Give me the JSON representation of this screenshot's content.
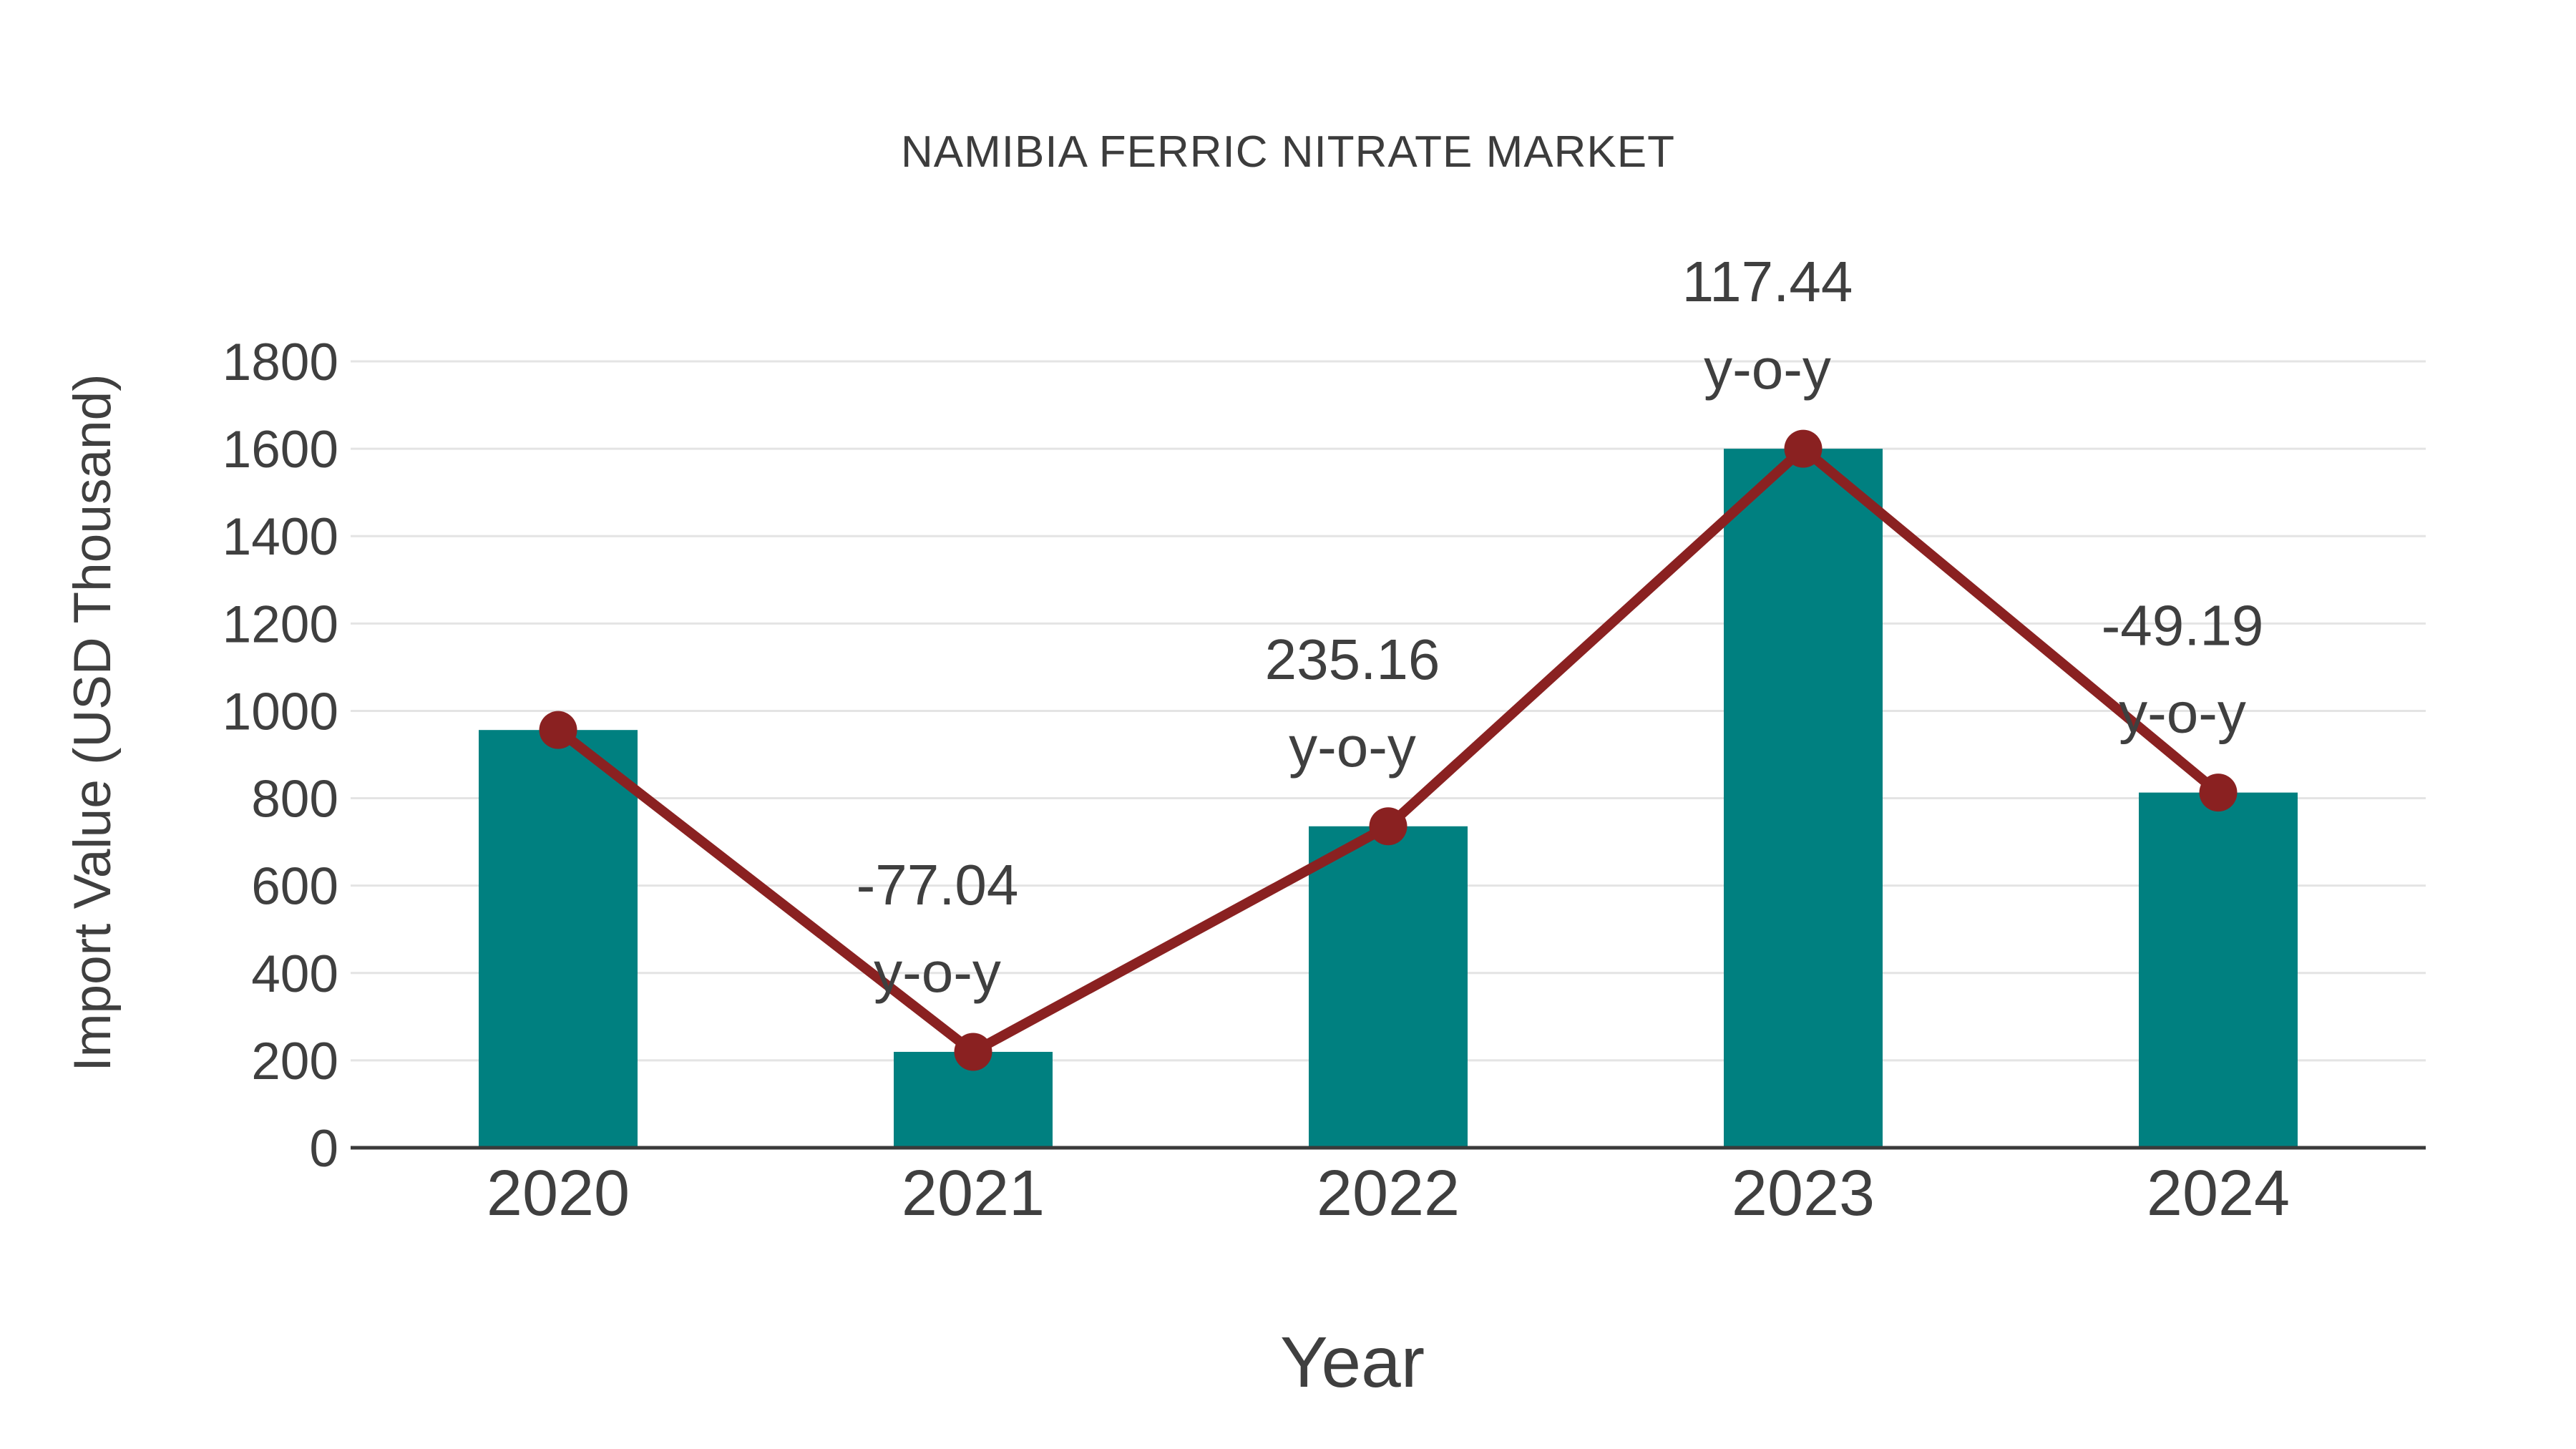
{
  "page": {
    "background": "#ffffff"
  },
  "chart_data": {
    "type": "bar",
    "title": "NAMIBIA FERRIC NITRATE MARKET",
    "xlabel": "Year",
    "ylabel": "Import Value (USD Thousand)",
    "categories": [
      "2020",
      "2021",
      "2022",
      "2023",
      "2024"
    ],
    "values": [
      956.2,
      219.5,
      735.8,
      1600,
      813
    ],
    "units": "USD Thousand",
    "overlay_line": {
      "name": "import-value-trend-line",
      "follows_bar_tops": true,
      "markers": true
    },
    "yoy_percent": [
      null,
      -77.04,
      235.16,
      117.44,
      -49.19
    ],
    "annotations": [
      {
        "category": "2021",
        "text": "-77.04",
        "suffix": "y-o-y"
      },
      {
        "category": "2022",
        "text": "235.16",
        "suffix": "y-o-y"
      },
      {
        "category": "2023",
        "text": "117.44",
        "suffix": "y-o-y"
      },
      {
        "category": "2024",
        "text": "-49.19",
        "suffix": "y-o-y"
      }
    ],
    "ylim": [
      0,
      1800
    ],
    "yticks": [
      0,
      200,
      400,
      600,
      800,
      1000,
      1200,
      1400,
      1600,
      1800
    ],
    "grid": "horizontal",
    "legend": "none",
    "colors": {
      "bar": "#008080",
      "line": "#8a2121",
      "marker": "#8a2121",
      "grid": "#e4e4e4",
      "axis": "#3a3a3a",
      "text": "#3f3f3f"
    }
  }
}
